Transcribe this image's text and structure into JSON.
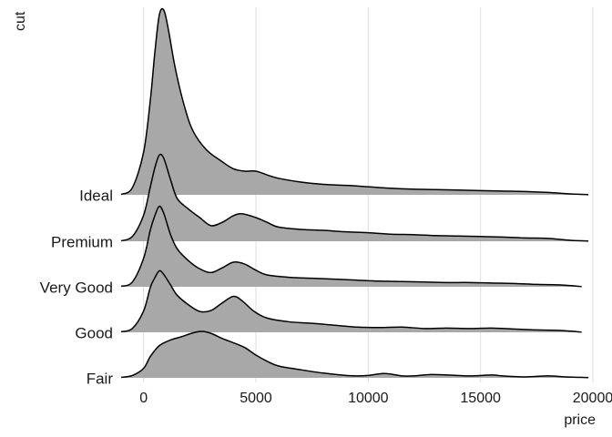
{
  "chart_data": {
    "type": "area",
    "subtype": "ridgeline",
    "title": "",
    "xlabel": "price",
    "ylabel": "cut",
    "xlim": [
      -1000,
      20000
    ],
    "xticks": [
      0,
      5000,
      10000,
      15000,
      20000
    ],
    "xtick_labels": [
      "0",
      "5000",
      "10000",
      "15000",
      "20000"
    ],
    "grid": {
      "vertical": true,
      "horizontal": false
    },
    "fill_color": "#a8a8a8",
    "stroke_color": "#000000",
    "categories": [
      "Fair",
      "Good",
      "Very Good",
      "Premium",
      "Ideal"
    ],
    "series": [
      {
        "name": "Fair",
        "points": [
          [
            -1000,
            0.01
          ],
          [
            -500,
            0.05
          ],
          [
            0,
            0.2
          ],
          [
            300,
            0.45
          ],
          [
            700,
            0.68
          ],
          [
            1200,
            0.8
          ],
          [
            1700,
            0.87
          ],
          [
            2200,
            0.95
          ],
          [
            2600,
            0.98
          ],
          [
            3000,
            0.94
          ],
          [
            3500,
            0.83
          ],
          [
            4000,
            0.74
          ],
          [
            4500,
            0.64
          ],
          [
            5000,
            0.48
          ],
          [
            5500,
            0.35
          ],
          [
            6000,
            0.25
          ],
          [
            7000,
            0.17
          ],
          [
            8000,
            0.1
          ],
          [
            9000,
            0.05
          ],
          [
            9500,
            0.04
          ],
          [
            10000,
            0.05
          ],
          [
            10600,
            0.09
          ],
          [
            11000,
            0.08
          ],
          [
            11500,
            0.04
          ],
          [
            12000,
            0.04
          ],
          [
            12800,
            0.07
          ],
          [
            13500,
            0.06
          ],
          [
            14500,
            0.04
          ],
          [
            15500,
            0.06
          ],
          [
            16000,
            0.04
          ],
          [
            17000,
            0.02
          ],
          [
            18000,
            0.04
          ],
          [
            18800,
            0.02
          ],
          [
            19800,
            0.005
          ]
        ]
      },
      {
        "name": "Good",
        "points": [
          [
            -1000,
            0.01
          ],
          [
            -500,
            0.08
          ],
          [
            0,
            0.45
          ],
          [
            300,
            0.95
          ],
          [
            500,
            1.15
          ],
          [
            700,
            1.3
          ],
          [
            900,
            1.22
          ],
          [
            1200,
            1.0
          ],
          [
            1500,
            0.78
          ],
          [
            2000,
            0.58
          ],
          [
            2500,
            0.44
          ],
          [
            3000,
            0.46
          ],
          [
            3500,
            0.62
          ],
          [
            4000,
            0.76
          ],
          [
            4400,
            0.66
          ],
          [
            4900,
            0.45
          ],
          [
            5500,
            0.3
          ],
          [
            6500,
            0.22
          ],
          [
            7500,
            0.19
          ],
          [
            8500,
            0.15
          ],
          [
            9500,
            0.11
          ],
          [
            10500,
            0.1
          ],
          [
            11500,
            0.11
          ],
          [
            12500,
            0.08
          ],
          [
            13500,
            0.09
          ],
          [
            14500,
            0.08
          ],
          [
            15500,
            0.09
          ],
          [
            16500,
            0.07
          ],
          [
            17500,
            0.05
          ],
          [
            18500,
            0.04
          ],
          [
            19500,
            0.005
          ]
        ]
      },
      {
        "name": "Very Good",
        "points": [
          [
            -1000,
            0.01
          ],
          [
            -500,
            0.1
          ],
          [
            0,
            0.6
          ],
          [
            300,
            1.2
          ],
          [
            500,
            1.5
          ],
          [
            700,
            1.7
          ],
          [
            900,
            1.55
          ],
          [
            1200,
            1.1
          ],
          [
            1500,
            0.8
          ],
          [
            2000,
            0.55
          ],
          [
            2500,
            0.38
          ],
          [
            3000,
            0.3
          ],
          [
            3500,
            0.4
          ],
          [
            4000,
            0.52
          ],
          [
            4500,
            0.48
          ],
          [
            5000,
            0.35
          ],
          [
            5500,
            0.25
          ],
          [
            6500,
            0.2
          ],
          [
            7500,
            0.18
          ],
          [
            8500,
            0.16
          ],
          [
            9500,
            0.14
          ],
          [
            10500,
            0.12
          ],
          [
            11500,
            0.11
          ],
          [
            12500,
            0.1
          ],
          [
            13500,
            0.09
          ],
          [
            14500,
            0.09
          ],
          [
            15500,
            0.08
          ],
          [
            16500,
            0.07
          ],
          [
            17500,
            0.05
          ],
          [
            18500,
            0.04
          ],
          [
            19500,
            0.005
          ]
        ]
      },
      {
        "name": "Premium",
        "points": [
          [
            -1000,
            0.01
          ],
          [
            -500,
            0.1
          ],
          [
            0,
            0.55
          ],
          [
            300,
            1.15
          ],
          [
            500,
            1.55
          ],
          [
            700,
            1.82
          ],
          [
            900,
            1.75
          ],
          [
            1200,
            1.3
          ],
          [
            1500,
            0.9
          ],
          [
            2000,
            0.68
          ],
          [
            2500,
            0.5
          ],
          [
            3000,
            0.33
          ],
          [
            3500,
            0.4
          ],
          [
            4000,
            0.54
          ],
          [
            4400,
            0.58
          ],
          [
            5000,
            0.5
          ],
          [
            5500,
            0.4
          ],
          [
            6000,
            0.3
          ],
          [
            7000,
            0.25
          ],
          [
            8000,
            0.23
          ],
          [
            9000,
            0.2
          ],
          [
            10000,
            0.18
          ],
          [
            11000,
            0.15
          ],
          [
            12000,
            0.14
          ],
          [
            13000,
            0.12
          ],
          [
            14000,
            0.11
          ],
          [
            15000,
            0.1
          ],
          [
            16000,
            0.09
          ],
          [
            17000,
            0.07
          ],
          [
            18000,
            0.06
          ],
          [
            19000,
            0.02
          ],
          [
            19800,
            0.005
          ]
        ]
      },
      {
        "name": "Ideal",
        "points": [
          [
            -1000,
            0.01
          ],
          [
            -500,
            0.15
          ],
          [
            0,
            0.9
          ],
          [
            300,
            2.0
          ],
          [
            500,
            3.0
          ],
          [
            700,
            3.8
          ],
          [
            900,
            3.9
          ],
          [
            1100,
            3.5
          ],
          [
            1400,
            2.7
          ],
          [
            1800,
            1.9
          ],
          [
            2200,
            1.35
          ],
          [
            2800,
            0.95
          ],
          [
            3500,
            0.7
          ],
          [
            4000,
            0.55
          ],
          [
            4500,
            0.5
          ],
          [
            5000,
            0.5
          ],
          [
            5500,
            0.42
          ],
          [
            6000,
            0.35
          ],
          [
            7000,
            0.27
          ],
          [
            8000,
            0.22
          ],
          [
            9000,
            0.2
          ],
          [
            10000,
            0.17
          ],
          [
            11000,
            0.14
          ],
          [
            12000,
            0.12
          ],
          [
            13000,
            0.11
          ],
          [
            14000,
            0.1
          ],
          [
            15000,
            0.09
          ],
          [
            16000,
            0.08
          ],
          [
            17000,
            0.07
          ],
          [
            18000,
            0.05
          ],
          [
            19000,
            0.02
          ],
          [
            19800,
            0.005
          ]
        ]
      }
    ]
  }
}
